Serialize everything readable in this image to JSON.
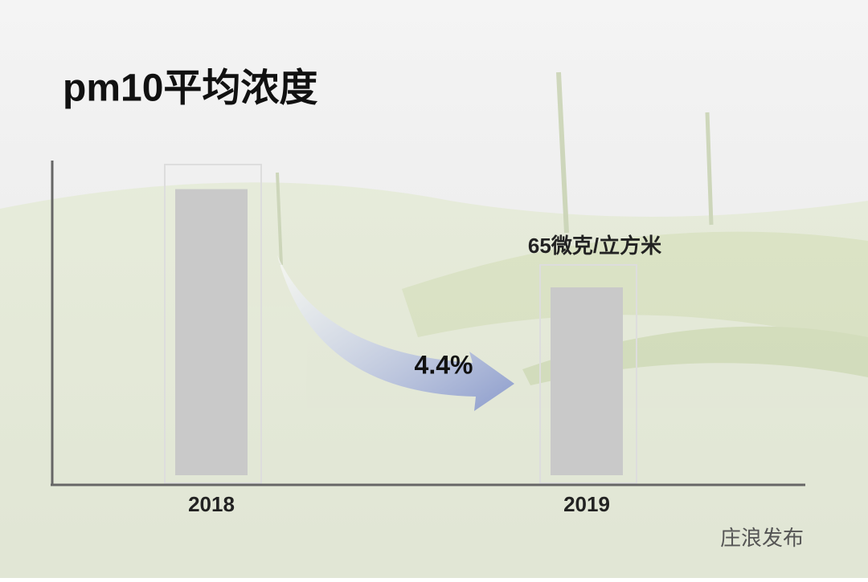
{
  "chart_data": {
    "type": "bar",
    "title": "pm10平均浓度",
    "categories": [
      "2018",
      "2019"
    ],
    "values": [
      99,
      65
    ],
    "value_labels": [
      null,
      "65微克/立方米"
    ],
    "color": "#c9c9c9",
    "annotation": "4.4%"
  },
  "watermark": "庄浪发布"
}
